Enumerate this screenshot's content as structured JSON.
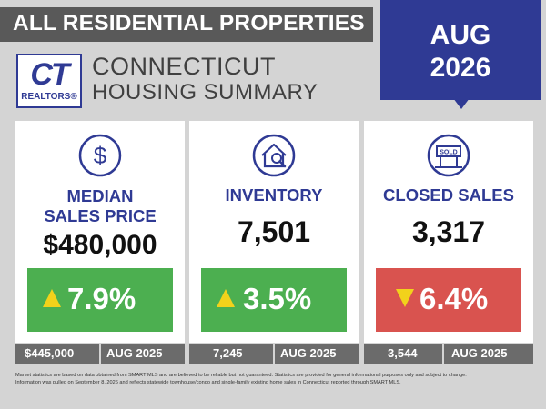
{
  "header": {
    "banner": "ALL RESIDENTIAL PROPERTIES",
    "title_line1": "CONNECTICUT",
    "title_line2": "HOUSING SUMMARY",
    "month": "AUG",
    "year": "2026"
  },
  "logo": {
    "letters": "CT",
    "sub": "REALTORS®"
  },
  "cards": [
    {
      "label_line1": "MEDIAN",
      "label_line2": "SALES PRICE",
      "value": "$480,000",
      "change": "7.9%",
      "direction": "up",
      "prev_value": "$445,000",
      "prev_date": "AUG 2025",
      "icon": "dollar-icon"
    },
    {
      "label_line1": "INVENTORY",
      "value": "7,501",
      "change": "3.5%",
      "direction": "up",
      "prev_value": "7,245",
      "prev_date": "AUG 2025",
      "icon": "house-search-icon"
    },
    {
      "label_line1": "CLOSED SALES",
      "value": "3,317",
      "change": "6.4%",
      "direction": "down",
      "prev_value": "3,544",
      "prev_date": "AUG 2025",
      "icon": "sold-sign-icon",
      "sign_text": "SOLD"
    }
  ],
  "colors": {
    "brand_blue": "#2f3a94",
    "up_green": "#4caf50",
    "down_red": "#d9534f",
    "arrow_yellow": "#f2d21b"
  },
  "disclaimer": {
    "line1": "Market statistics are based on data obtained from SMART MLS and are believed to be reliable but not guaranteed. Statistics are provided for general informational purposes only and subject to change.",
    "line2": "Information was pulled on September 8, 2026 and reflects statewide townhouse/condo and single-family existing home sales in Connecticut reported through SMART MLS."
  }
}
